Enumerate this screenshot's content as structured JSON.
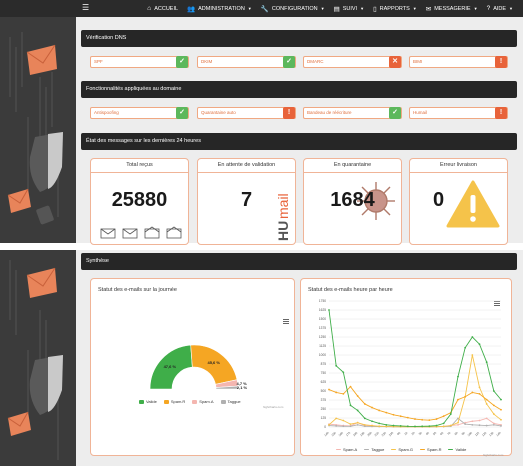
{
  "nav": {
    "items": [
      {
        "icon": "home-icon",
        "glyph": "⌂",
        "label": "ACCUEIL",
        "caret": false
      },
      {
        "icon": "users-icon",
        "glyph": "👥",
        "label": "ADMINISTRATION",
        "caret": true
      },
      {
        "icon": "wrench-icon",
        "glyph": "🔧",
        "label": "CONFIGURATION",
        "caret": true
      },
      {
        "icon": "chart-icon",
        "glyph": "▤",
        "label": "SUIVI",
        "caret": true
      },
      {
        "icon": "file-icon",
        "glyph": "▯",
        "label": "RAPPORTS",
        "caret": true
      },
      {
        "icon": "envelope-icon",
        "glyph": "✉",
        "label": "MESSAGERIE",
        "caret": true
      },
      {
        "icon": "help-icon",
        "glyph": "?",
        "label": "AIDE",
        "caret": true
      }
    ]
  },
  "dns": {
    "header": "Vérification DNS",
    "items": [
      {
        "label": "SPF",
        "status": "ok",
        "glyph": "✓"
      },
      {
        "label": "DKIM",
        "status": "ok",
        "glyph": "✓"
      },
      {
        "label": "DMARC",
        "status": "err",
        "glyph": "✕"
      },
      {
        "label": "BIMI",
        "status": "warn",
        "glyph": "!"
      }
    ]
  },
  "features": {
    "header": "Fonctionnalités appliquées au domaine",
    "items": [
      {
        "label": "Antispoofing",
        "status": "ok",
        "glyph": "✓"
      },
      {
        "label": "Quarantaine auto",
        "status": "warn",
        "glyph": "!"
      },
      {
        "label": "Bandeau de réécriture",
        "status": "ok",
        "glyph": "✓"
      },
      {
        "label": "Humail",
        "status": "warn",
        "glyph": "!"
      }
    ]
  },
  "state": {
    "header": "État des messages sur les dernières 24 heures",
    "cards": [
      {
        "title": "Total reçus",
        "value": "25880"
      },
      {
        "title": "En attente de validation",
        "value": "7",
        "watermark": "HUmail"
      },
      {
        "title": "En quarantaine",
        "value": "1684"
      },
      {
        "title": "Erreur livraison",
        "value": "0"
      }
    ]
  },
  "synthese": {
    "header": "Synthèse",
    "credit": "highcharts.com",
    "donut_title": "Statut des e-mails sur la journée",
    "line_title": "Statut des e-mails heure par heure"
  },
  "colors": {
    "valide": "#3fae49",
    "spamr": "#f5a623",
    "spama": "#f4b6b0",
    "taggue": "#b0b0b0",
    "spamg": "#f5c34a",
    "accent": "#e8633a"
  },
  "chart_data": [
    {
      "type": "pie",
      "title": "Statut des e-mails sur la journée",
      "categories": [
        "Valide",
        "Spam.R",
        "Spam.A",
        "Taggue"
      ],
      "values": [
        47.6,
        45.6,
        4.7,
        2.1
      ],
      "data_labels": [
        "47,6 %",
        "45,6 %",
        "4,7 %",
        "2,1 %"
      ],
      "legend": "bottom"
    },
    {
      "type": "line",
      "title": "Statut des e-mails heure par heure",
      "categories": [
        "14h",
        "15h",
        "16h",
        "17h",
        "18h",
        "19h",
        "20h",
        "21h",
        "22h",
        "23h",
        "0h",
        "1h",
        "2h",
        "3h",
        "4h",
        "5h",
        "6h",
        "7h",
        "8h",
        "9h",
        "10h",
        "11h",
        "12h",
        "13h",
        "14h"
      ],
      "ylim": [
        0,
        1750
      ],
      "yticks": [
        0,
        125,
        250,
        375,
        500,
        625,
        750,
        875,
        1000,
        1125,
        1250,
        1375,
        1500,
        1625,
        1750
      ],
      "series": [
        {
          "name": "Spam.A",
          "values": [
            40,
            30,
            20,
            15,
            60,
            20,
            12,
            10,
            8,
            6,
            5,
            10,
            5,
            4,
            4,
            5,
            10,
            20,
            30,
            60,
            80,
            90,
            120,
            50,
            30
          ]
        },
        {
          "name": "Taggue",
          "values": [
            20,
            15,
            10,
            10,
            30,
            10,
            8,
            6,
            4,
            3,
            3,
            5,
            3,
            2,
            3,
            4,
            6,
            10,
            120,
            40,
            30,
            25,
            20,
            30,
            15
          ]
        },
        {
          "name": "Spam.G",
          "values": [
            30,
            120,
            90,
            40,
            60,
            30,
            20,
            10,
            8,
            5,
            3,
            5,
            3,
            5,
            3,
            4,
            8,
            20,
            60,
            420,
            1000,
            550,
            320,
            180,
            100
          ]
        },
        {
          "name": "Spam.R",
          "values": [
            520,
            480,
            460,
            560,
            430,
            320,
            270,
            230,
            200,
            170,
            150,
            130,
            110,
            100,
            95,
            110,
            150,
            200,
            380,
            420,
            480,
            460,
            380,
            300,
            240
          ]
        },
        {
          "name": "Valide",
          "values": [
            1625,
            850,
            760,
            300,
            230,
            120,
            80,
            50,
            30,
            20,
            15,
            10,
            8,
            10,
            12,
            20,
            50,
            180,
            700,
            1100,
            1250,
            1150,
            900,
            500,
            380
          ]
        }
      ],
      "legend": "bottom"
    }
  ]
}
